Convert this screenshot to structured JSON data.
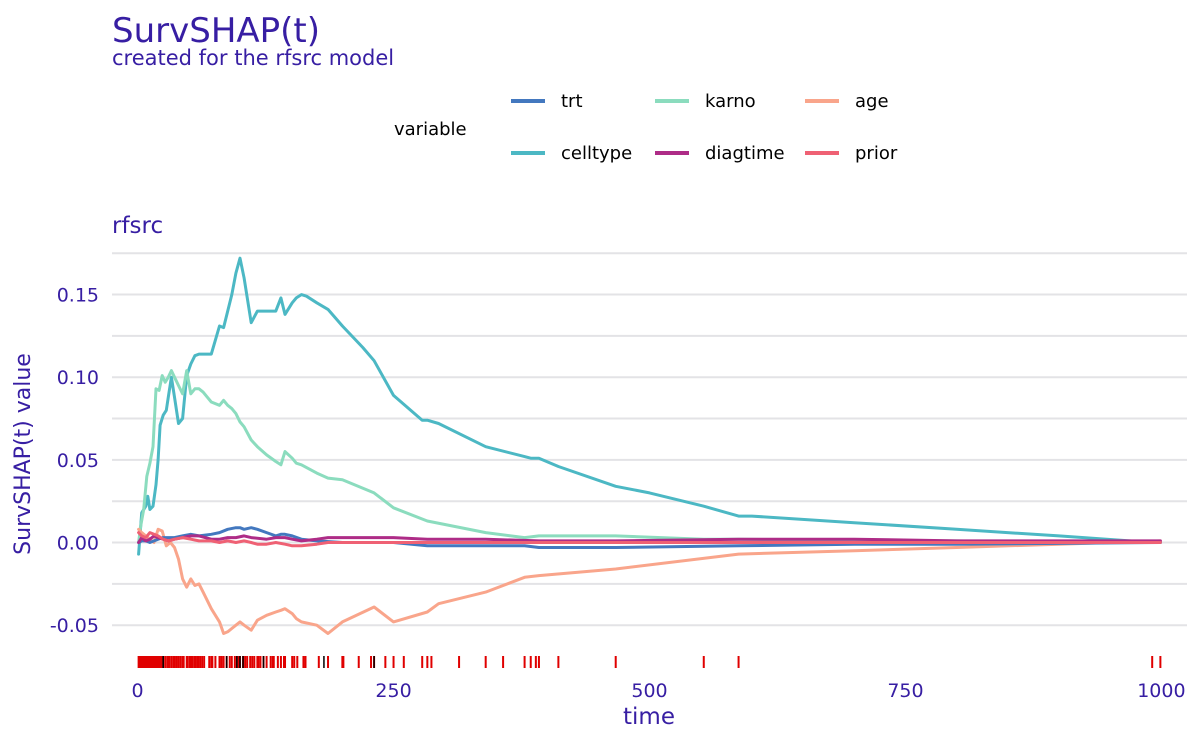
{
  "chart_data": {
    "type": "line",
    "title": "SurvSHAP(t)",
    "subtitle": "created for the rfsrc model",
    "panel_label": "rfsrc",
    "xlabel": "time",
    "ylabel": "SurvSHAP(t) value",
    "xlim": [
      -25,
      1025
    ],
    "ylim": [
      -0.065,
      0.183
    ],
    "xticks": [
      0,
      250,
      500,
      750,
      1000
    ],
    "xtick_labels": [
      "0",
      "250",
      "500",
      "750",
      "1000"
    ],
    "yticks": [
      -0.05,
      0.0,
      0.05,
      0.1,
      0.15
    ],
    "ytick_labels": [
      "-0.05",
      "0.00",
      "0.05",
      "0.10",
      "0.15"
    ],
    "legend": {
      "title": "variable",
      "position": "top",
      "entries": [
        "trt",
        "karno",
        "age",
        "celltype",
        "diagtime",
        "prior"
      ]
    },
    "series": [
      {
        "name": "celltype",
        "color": "#4cb8c4",
        "x": [
          1,
          4,
          8,
          10,
          12,
          15,
          18,
          20,
          22,
          25,
          28,
          30,
          33,
          36,
          40,
          44,
          48,
          52,
          56,
          60,
          72,
          80,
          84,
          88,
          92,
          96,
          100,
          104,
          111,
          117,
          126,
          135,
          140,
          144,
          151,
          155,
          160,
          165,
          175,
          186,
          200,
          220,
          231,
          250,
          278,
          283,
          294,
          340,
          378,
          384,
          392,
          411,
          467,
          500,
          553,
          587,
          600,
          700,
          800,
          900,
          991,
          999
        ],
        "y": [
          -0.007,
          0.018,
          0.022,
          0.028,
          0.02,
          0.022,
          0.035,
          0.05,
          0.071,
          0.077,
          0.08,
          0.088,
          0.1,
          0.088,
          0.072,
          0.075,
          0.101,
          0.108,
          0.113,
          0.114,
          0.114,
          0.131,
          0.13,
          0.14,
          0.15,
          0.163,
          0.172,
          0.16,
          0.133,
          0.14,
          0.14,
          0.14,
          0.148,
          0.138,
          0.145,
          0.148,
          0.15,
          0.149,
          0.145,
          0.141,
          0.131,
          0.118,
          0.11,
          0.089,
          0.074,
          0.074,
          0.072,
          0.058,
          0.052,
          0.051,
          0.051,
          0.046,
          0.034,
          0.03,
          0.022,
          0.016,
          0.016,
          0.012,
          0.008,
          0.004,
          0.0,
          0.0
        ]
      },
      {
        "name": "karno",
        "color": "#8bdcbe",
        "x": [
          1,
          3,
          6,
          9,
          12,
          15,
          18,
          21,
          24,
          27,
          30,
          33,
          36,
          40,
          44,
          48,
          52,
          56,
          60,
          64,
          68,
          72,
          80,
          84,
          88,
          92,
          96,
          100,
          104,
          111,
          117,
          126,
          135,
          140,
          144,
          151,
          155,
          160,
          175,
          186,
          200,
          231,
          250,
          283,
          340,
          378,
          392,
          467,
          553,
          587,
          700,
          800,
          900,
          999
        ],
        "y": [
          0.0,
          0.01,
          0.02,
          0.04,
          0.048,
          0.058,
          0.093,
          0.092,
          0.101,
          0.097,
          0.1,
          0.104,
          0.1,
          0.095,
          0.09,
          0.104,
          0.09,
          0.093,
          0.093,
          0.091,
          0.088,
          0.085,
          0.083,
          0.086,
          0.083,
          0.081,
          0.078,
          0.073,
          0.07,
          0.062,
          0.058,
          0.053,
          0.049,
          0.047,
          0.055,
          0.051,
          0.048,
          0.047,
          0.042,
          0.039,
          0.038,
          0.03,
          0.021,
          0.013,
          0.006,
          0.003,
          0.004,
          0.004,
          0.002,
          0.002,
          0.001,
          0.001,
          0.0,
          0.0
        ]
      },
      {
        "name": "age",
        "color": "#f9a58b",
        "x": [
          1,
          4,
          8,
          12,
          16,
          20,
          24,
          28,
          32,
          36,
          40,
          44,
          48,
          52,
          56,
          60,
          64,
          72,
          80,
          84,
          88,
          92,
          96,
          100,
          104,
          111,
          117,
          126,
          135,
          140,
          144,
          151,
          155,
          160,
          175,
          186,
          200,
          231,
          250,
          283,
          294,
          340,
          378,
          392,
          467,
          587,
          700,
          800,
          900,
          999
        ],
        "y": [
          0.008,
          0.006,
          0.004,
          0.002,
          0.0,
          0.008,
          0.007,
          -0.002,
          0.0,
          -0.003,
          -0.01,
          -0.022,
          -0.027,
          -0.022,
          -0.026,
          -0.025,
          -0.03,
          -0.04,
          -0.048,
          -0.055,
          -0.054,
          -0.052,
          -0.05,
          -0.048,
          -0.05,
          -0.053,
          -0.047,
          -0.044,
          -0.042,
          -0.041,
          -0.04,
          -0.043,
          -0.046,
          -0.048,
          -0.05,
          -0.055,
          -0.048,
          -0.039,
          -0.048,
          -0.042,
          -0.037,
          -0.03,
          -0.021,
          -0.02,
          -0.016,
          -0.007,
          -0.005,
          -0.003,
          -0.001,
          0.001
        ]
      },
      {
        "name": "trt",
        "color": "#4378bf",
        "x": [
          1,
          4,
          8,
          12,
          16,
          20,
          25,
          30,
          36,
          44,
          52,
          60,
          72,
          80,
          88,
          96,
          100,
          104,
          111,
          117,
          126,
          135,
          140,
          144,
          151,
          160,
          175,
          200,
          250,
          283,
          340,
          378,
          392,
          467,
          587,
          700,
          800,
          999
        ],
        "y": [
          0.0,
          0.001,
          0.001,
          0.0,
          0.001,
          0.002,
          0.003,
          0.003,
          0.003,
          0.004,
          0.005,
          0.004,
          0.005,
          0.006,
          0.008,
          0.009,
          0.009,
          0.008,
          0.009,
          0.008,
          0.006,
          0.004,
          0.005,
          0.005,
          0.004,
          0.002,
          0.001,
          0.0,
          0.0,
          -0.002,
          -0.002,
          -0.002,
          -0.003,
          -0.003,
          -0.002,
          -0.001,
          -0.001,
          0.0
        ]
      },
      {
        "name": "diagtime",
        "color": "#ae2c87",
        "x": [
          1,
          4,
          8,
          12,
          16,
          20,
          25,
          30,
          36,
          44,
          52,
          60,
          72,
          80,
          88,
          96,
          104,
          111,
          126,
          135,
          144,
          151,
          160,
          175,
          186,
          200,
          231,
          250,
          283,
          294,
          340,
          392,
          467,
          587,
          700,
          800,
          900,
          999
        ],
        "y": [
          0.0,
          0.003,
          0.001,
          0.002,
          0.004,
          0.003,
          0.002,
          0.001,
          0.002,
          0.003,
          0.004,
          0.004,
          0.002,
          0.002,
          0.003,
          0.003,
          0.004,
          0.003,
          0.002,
          0.003,
          0.003,
          0.002,
          0.001,
          0.002,
          0.003,
          0.003,
          0.003,
          0.003,
          0.002,
          0.002,
          0.002,
          0.001,
          0.001,
          0.002,
          0.002,
          0.001,
          0.001,
          0.001
        ]
      },
      {
        "name": "prior",
        "color": "#ef6174",
        "x": [
          1,
          4,
          8,
          12,
          16,
          20,
          25,
          30,
          36,
          44,
          52,
          60,
          72,
          80,
          88,
          96,
          104,
          111,
          117,
          126,
          135,
          144,
          151,
          160,
          175,
          186,
          200,
          231,
          250,
          283,
          294,
          340,
          392,
          467,
          587,
          700,
          800,
          900,
          999
        ],
        "y": [
          0.006,
          0.004,
          0.003,
          0.006,
          0.005,
          0.004,
          0.002,
          0.001,
          0.002,
          0.003,
          0.002,
          0.001,
          0.001,
          0.0,
          0.001,
          0.0,
          0.001,
          0.0,
          -0.001,
          -0.001,
          0.0,
          -0.001,
          -0.002,
          -0.002,
          -0.001,
          0.0,
          0.0,
          0.0,
          0.0,
          0.0,
          0.0,
          0.0,
          0.0,
          0.0,
          0.0,
          0.0,
          0.0,
          0.0,
          0.0
        ]
      }
    ],
    "rug": {
      "events": [
        1,
        2,
        3,
        4,
        5,
        6,
        7,
        8,
        9,
        10,
        11,
        12,
        13,
        14,
        15,
        16,
        17,
        18,
        19,
        20,
        21,
        22,
        23,
        24,
        25,
        27,
        29,
        30,
        31,
        33,
        35,
        36,
        38,
        40,
        42,
        44,
        45,
        48,
        49,
        51,
        52,
        53,
        54,
        56,
        57,
        59,
        61,
        63,
        65,
        70,
        72,
        73,
        76,
        80,
        82,
        84,
        87,
        90,
        92,
        95,
        97,
        99,
        100,
        103,
        105,
        107,
        110,
        112,
        114,
        117,
        118,
        120,
        123,
        126,
        130,
        132,
        133,
        137,
        140,
        143,
        144,
        151,
        153,
        156,
        162,
        164,
        177,
        186,
        200,
        201,
        216,
        228,
        231,
        242,
        250,
        260,
        278,
        283,
        287,
        314,
        340,
        357,
        378,
        384,
        389,
        392,
        411,
        467,
        553,
        587,
        991,
        999
      ],
      "censored": [
        25,
        87,
        97,
        100,
        103,
        123,
        182,
        231
      ]
    }
  }
}
